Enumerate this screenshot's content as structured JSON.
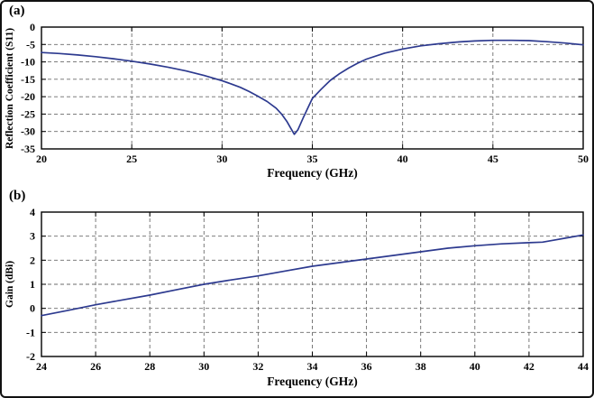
{
  "chart_data": [
    {
      "id": "s11",
      "type": "line",
      "panel_label": "(a)",
      "xlabel": "Frequency (GHz)",
      "ylabel": "Reflection Coefficient (S11)",
      "xlim": [
        20,
        50
      ],
      "ylim": [
        -35,
        0
      ],
      "xticks": [
        20,
        25,
        30,
        35,
        40,
        45,
        50
      ],
      "yticks": [
        0,
        -5,
        -10,
        -15,
        -20,
        -25,
        -30,
        -35
      ],
      "grid": true,
      "line_color": "#2d3a8f",
      "x": [
        20,
        21,
        22,
        23,
        24,
        25,
        26,
        27,
        28,
        29,
        30,
        30.5,
        31,
        31.5,
        32,
        32.5,
        33,
        33.3,
        33.6,
        33.8,
        34,
        34.2,
        34.5,
        35,
        35.5,
        36,
        36.5,
        37,
        37.5,
        38,
        39,
        40,
        41,
        42,
        43,
        44,
        45,
        46,
        47,
        48,
        49,
        50
      ],
      "y": [
        -7.3,
        -7.6,
        -8.0,
        -8.5,
        -9.1,
        -9.8,
        -10.6,
        -11.5,
        -12.6,
        -13.9,
        -15.4,
        -16.3,
        -17.3,
        -18.5,
        -19.9,
        -21.4,
        -23.3,
        -25.0,
        -27.2,
        -29.0,
        -30.8,
        -29.5,
        -26.0,
        -20.5,
        -17.8,
        -15.3,
        -13.4,
        -11.8,
        -10.4,
        -9.2,
        -7.5,
        -6.3,
        -5.4,
        -4.8,
        -4.3,
        -4.0,
        -3.8,
        -3.8,
        -3.9,
        -4.2,
        -4.6,
        -5.1
      ]
    },
    {
      "id": "gain",
      "type": "line",
      "panel_label": "(b)",
      "xlabel": "Frequency (GHz)",
      "ylabel": "Gain (dBi)",
      "xlim": [
        24,
        44
      ],
      "ylim": [
        -2,
        4
      ],
      "xticks": [
        24,
        26,
        28,
        30,
        32,
        34,
        36,
        38,
        40,
        42,
        44
      ],
      "yticks": [
        4,
        3,
        2,
        1,
        0,
        -1,
        -2
      ],
      "grid": true,
      "line_color": "#2d3a8f",
      "x": [
        24,
        25,
        26,
        27,
        28,
        29,
        30,
        31,
        32,
        33,
        34,
        35,
        36,
        37,
        38,
        39,
        40,
        41,
        42,
        42.5,
        43,
        43.5,
        44
      ],
      "y": [
        -0.3,
        -0.08,
        0.15,
        0.35,
        0.55,
        0.78,
        1.0,
        1.18,
        1.35,
        1.55,
        1.75,
        1.9,
        2.05,
        2.2,
        2.35,
        2.5,
        2.6,
        2.68,
        2.73,
        2.75,
        2.85,
        2.95,
        3.05
      ]
    }
  ]
}
